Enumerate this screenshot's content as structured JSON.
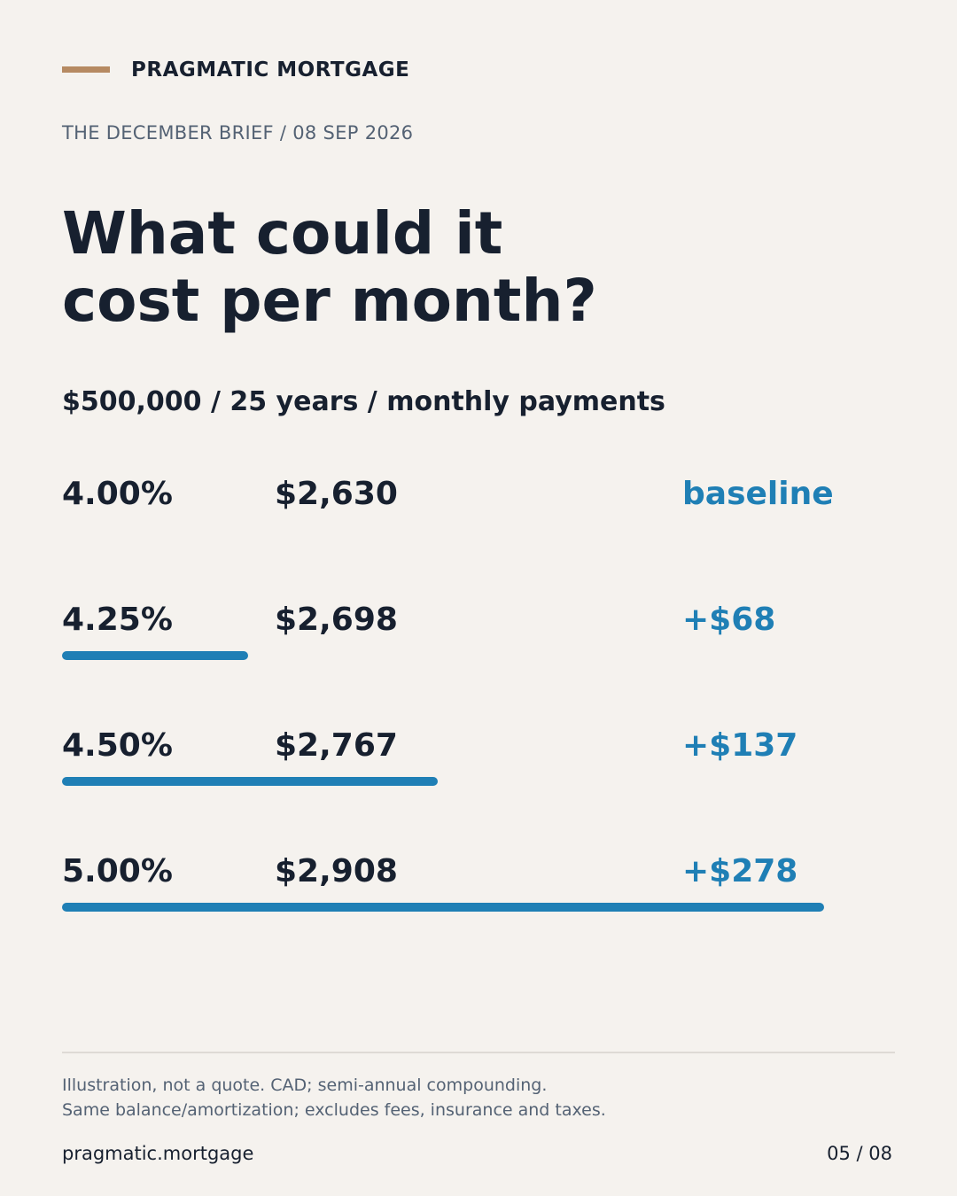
{
  "brand": {
    "name": "PRAGMATIC MORTGAGE",
    "accent_color": "#b68a62"
  },
  "issue_line": "THE DECEMBER BRIEF / 08 SEP 2026",
  "headline": {
    "line1": "What could it",
    "line2": "cost per month?"
  },
  "subhead": "$500,000 / 25 years / monthly payments",
  "chart_data": {
    "type": "bar",
    "title": "",
    "categories": [
      "4.00%",
      "4.25%",
      "4.50%",
      "5.00%"
    ],
    "payments": [
      "$2,630",
      "$2,698",
      "$2,767",
      "$2,908"
    ],
    "delta_labels": [
      "baseline",
      "+$68",
      "+$137",
      "+$278"
    ],
    "values": [
      0,
      68,
      137,
      278
    ],
    "bar_color": "#1f7fb5",
    "xlim": [
      0,
      278
    ],
    "legend": "none",
    "grid": false
  },
  "footnotes": {
    "line1": "Illustration, not a quote. CAD; semi-annual compounding.",
    "line2": "Same balance/amortization; excludes fees, insurance and taxes."
  },
  "footer": {
    "url": "pragmatic.mortgage",
    "page": "05 / 08"
  }
}
